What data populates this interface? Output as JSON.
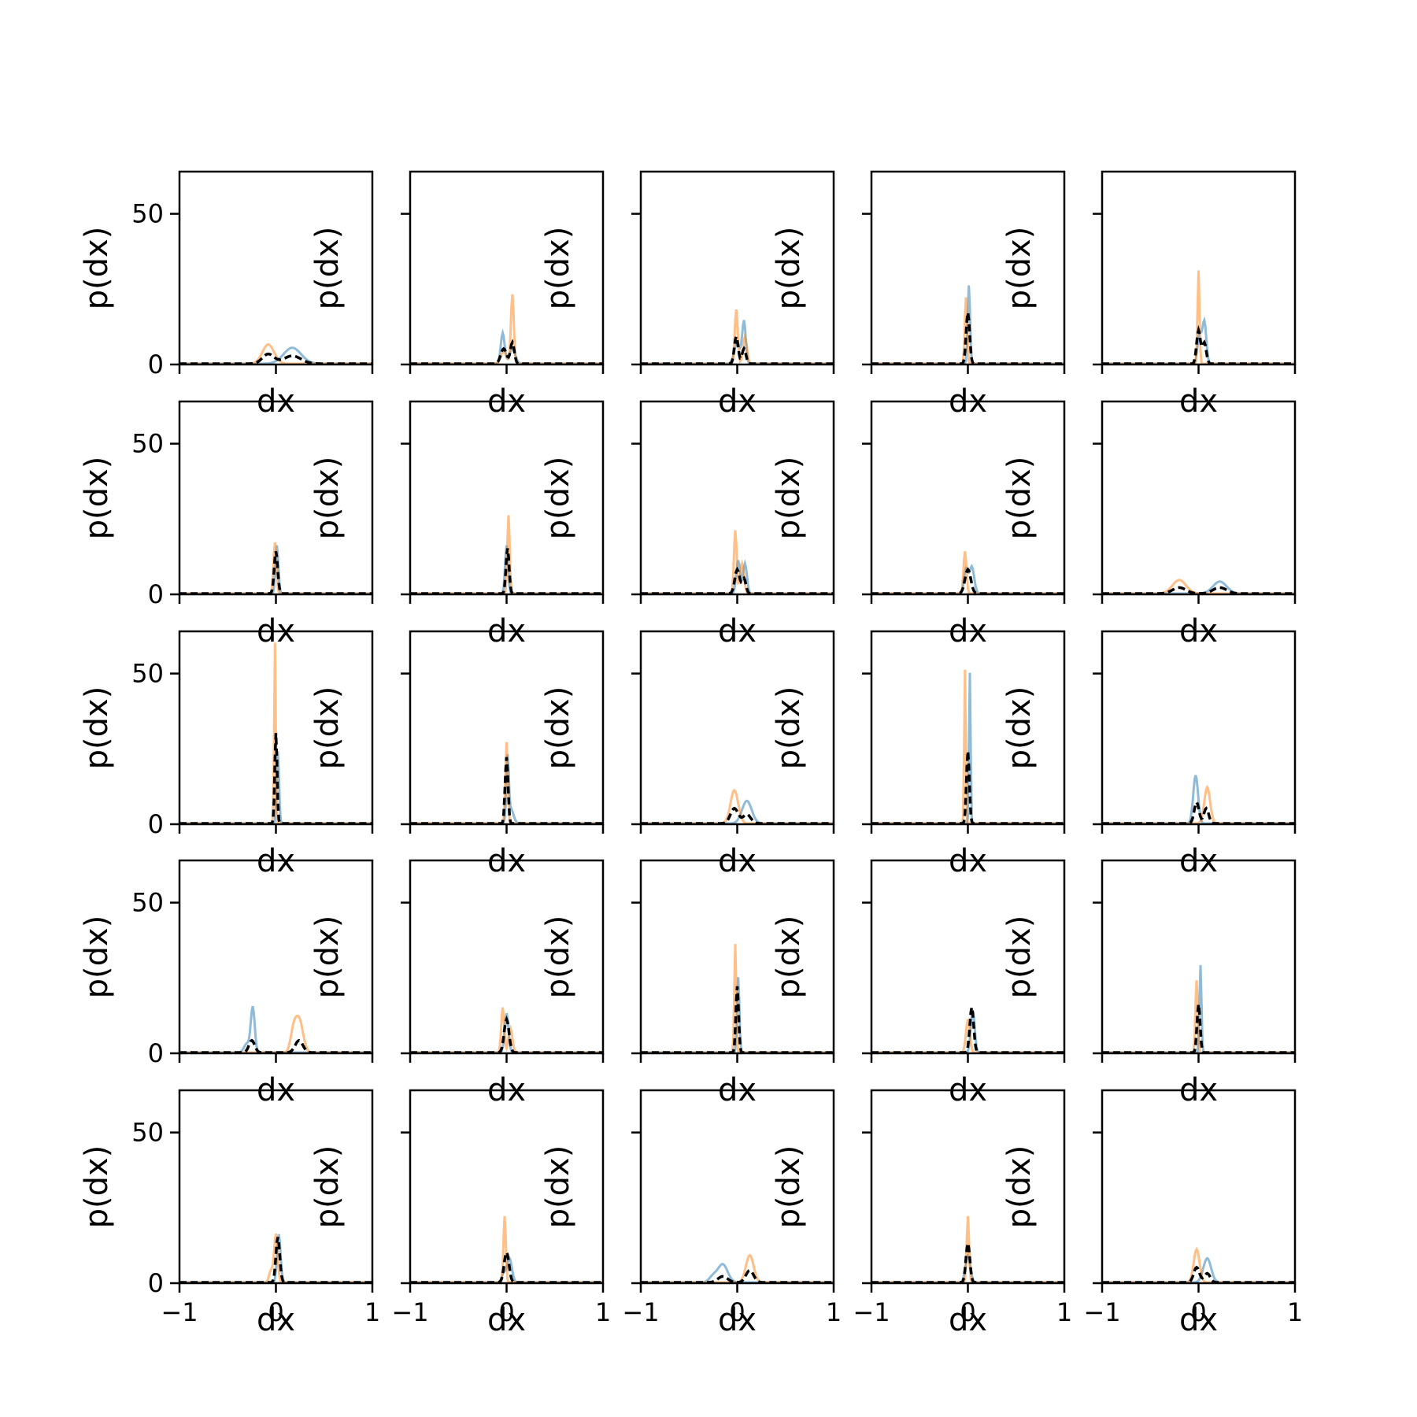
{
  "chart_data": {
    "type": "line",
    "layout": "grid",
    "rows": 5,
    "cols": 5,
    "xlabel": "dx",
    "ylabel": "p(dx)",
    "xlim": [
      -1,
      1
    ],
    "ylim": [
      0,
      64
    ],
    "xticks": [
      -1,
      0,
      1
    ],
    "xtick_labels": [
      "−1",
      "0",
      "1"
    ],
    "yticks": [
      0,
      50
    ],
    "ytick_labels": [
      "0",
      "50"
    ],
    "grid": false,
    "legend": "none",
    "series_styles": [
      {
        "key": "blue",
        "color": "#1f77b4",
        "alpha": 0.5,
        "style": "solid"
      },
      {
        "key": "orange",
        "color": "#ff7f0e",
        "alpha": 0.5,
        "style": "solid"
      },
      {
        "key": "black",
        "color": "#000000",
        "alpha": 1,
        "style": "dashed"
      }
    ],
    "panels": [
      {
        "blue": [
          [
            0.17,
            5.3,
            0.09
          ]
        ],
        "orange": [
          [
            -0.08,
            6.4,
            0.06
          ]
        ],
        "black": [
          [
            -0.08,
            3.2,
            0.06
          ],
          [
            0.17,
            2.6,
            0.09
          ]
        ]
      },
      {
        "blue": [
          [
            -0.04,
            10.2,
            0.02
          ],
          [
            0.06,
            5,
            0.03
          ]
        ],
        "orange": [
          [
            0.06,
            23,
            0.015
          ],
          [
            -0.03,
            4,
            0.03
          ]
        ],
        "black": [
          [
            -0.03,
            5,
            0.03
          ],
          [
            0.06,
            7,
            0.02
          ]
        ]
      },
      {
        "blue": [
          [
            0.07,
            14,
            0.018
          ],
          [
            0.0,
            7,
            0.03
          ]
        ],
        "orange": [
          [
            -0.01,
            18,
            0.015
          ],
          [
            0.08,
            9,
            0.02
          ]
        ],
        "black": [
          [
            -0.01,
            9,
            0.02
          ],
          [
            0.07,
            5,
            0.02
          ]
        ]
      },
      {
        "blue": [
          [
            0.01,
            26,
            0.012
          ]
        ],
        "orange": [
          [
            -0.02,
            22,
            0.012
          ]
        ],
        "black": [
          [
            0.0,
            17,
            0.018
          ]
        ]
      },
      {
        "blue": [
          [
            0.06,
            14,
            0.02
          ],
          [
            0.01,
            10,
            0.02
          ]
        ],
        "orange": [
          [
            0.0,
            31,
            0.01
          ]
        ],
        "black": [
          [
            0.0,
            11,
            0.02
          ],
          [
            0.06,
            7,
            0.02
          ]
        ]
      },
      {
        "blue": [
          [
            0.01,
            16,
            0.015
          ]
        ],
        "orange": [
          [
            -0.01,
            17,
            0.015
          ]
        ],
        "black": [
          [
            0.0,
            14,
            0.018
          ]
        ]
      },
      {
        "blue": [
          [
            0.0,
            16,
            0.015
          ]
        ],
        "orange": [
          [
            0.02,
            26,
            0.012
          ]
        ],
        "black": [
          [
            0.01,
            15,
            0.016
          ]
        ]
      },
      {
        "blue": [
          [
            0.08,
            10,
            0.02
          ],
          [
            0.01,
            11,
            0.02
          ]
        ],
        "orange": [
          [
            -0.02,
            21,
            0.014
          ],
          [
            0.05,
            10,
            0.02
          ]
        ],
        "black": [
          [
            0.0,
            8,
            0.025
          ],
          [
            0.07,
            5,
            0.02
          ]
        ]
      },
      {
        "blue": [
          [
            0.04,
            9,
            0.025
          ],
          [
            -0.02,
            8,
            0.02
          ]
        ],
        "orange": [
          [
            -0.03,
            14,
            0.015
          ]
        ],
        "black": [
          [
            0.0,
            8,
            0.03
          ]
        ]
      },
      {
        "blue": [
          [
            0.22,
            4,
            0.07
          ]
        ],
        "orange": [
          [
            -0.2,
            4.5,
            0.07
          ]
        ],
        "black": [
          [
            -0.2,
            2,
            0.07
          ],
          [
            0.22,
            2,
            0.07
          ]
        ]
      },
      {
        "blue": [
          [
            0.02,
            24,
            0.012
          ]
        ],
        "orange": [
          [
            -0.01,
            60,
            0.008
          ]
        ],
        "black": [
          [
            0.0,
            30,
            0.012
          ]
        ]
      },
      {
        "blue": [
          [
            0.04,
            5,
            0.03
          ],
          [
            0.01,
            20,
            0.012
          ]
        ],
        "orange": [
          [
            0.0,
            27,
            0.012
          ]
        ],
        "black": [
          [
            0.0,
            22,
            0.015
          ]
        ]
      },
      {
        "blue": [
          [
            0.1,
            7.5,
            0.05
          ]
        ],
        "orange": [
          [
            -0.03,
            11,
            0.04
          ]
        ],
        "black": [
          [
            -0.03,
            5,
            0.04
          ],
          [
            0.1,
            3,
            0.04
          ]
        ]
      },
      {
        "blue": [
          [
            0.02,
            50,
            0.008
          ]
        ],
        "orange": [
          [
            -0.03,
            51,
            0.008
          ]
        ],
        "black": [
          [
            0.0,
            24,
            0.015
          ]
        ]
      },
      {
        "blue": [
          [
            -0.03,
            16,
            0.025
          ]
        ],
        "orange": [
          [
            0.09,
            12,
            0.03
          ]
        ],
        "black": [
          [
            -0.02,
            7,
            0.025
          ],
          [
            0.08,
            5,
            0.025
          ]
        ]
      },
      {
        "blue": [
          [
            -0.24,
            15,
            0.02
          ],
          [
            -0.3,
            3,
            0.03
          ]
        ],
        "orange": [
          [
            0.24,
            11,
            0.04
          ],
          [
            0.18,
            6,
            0.03
          ]
        ],
        "black": [
          [
            -0.25,
            4,
            0.03
          ],
          [
            0.24,
            4,
            0.04
          ]
        ]
      },
      {
        "blue": [
          [
            0.0,
            13,
            0.02
          ]
        ],
        "orange": [
          [
            -0.04,
            15,
            0.015
          ],
          [
            0.04,
            8,
            0.02
          ]
        ],
        "black": [
          [
            0.0,
            11,
            0.025
          ]
        ]
      },
      {
        "blue": [
          [
            0.01,
            25,
            0.012
          ]
        ],
        "orange": [
          [
            -0.02,
            36,
            0.01
          ]
        ],
        "black": [
          [
            0.0,
            22,
            0.014
          ]
        ]
      },
      {
        "blue": [
          [
            0.05,
            14,
            0.02
          ]
        ],
        "orange": [
          [
            0.0,
            11,
            0.02
          ]
        ],
        "black": [
          [
            0.04,
            15,
            0.02
          ]
        ]
      },
      {
        "blue": [
          [
            0.02,
            29,
            0.01
          ]
        ],
        "orange": [
          [
            -0.02,
            24,
            0.012
          ]
        ],
        "black": [
          [
            0.0,
            16,
            0.016
          ]
        ]
      },
      {
        "blue": [
          [
            0.03,
            16,
            0.018
          ]
        ],
        "orange": [
          [
            0.0,
            16,
            0.018
          ],
          [
            -0.05,
            4,
            0.02
          ]
        ],
        "black": [
          [
            0.02,
            15,
            0.02
          ]
        ]
      },
      {
        "blue": [
          [
            0.03,
            8,
            0.025
          ],
          [
            -0.03,
            3,
            0.02
          ]
        ],
        "orange": [
          [
            -0.02,
            22,
            0.012
          ]
        ],
        "black": [
          [
            0.0,
            10,
            0.025
          ]
        ]
      },
      {
        "blue": [
          [
            -0.15,
            6,
            0.05
          ],
          [
            -0.25,
            2,
            0.04
          ]
        ],
        "orange": [
          [
            0.13,
            9,
            0.04
          ]
        ],
        "black": [
          [
            -0.15,
            2,
            0.05
          ],
          [
            0.13,
            4,
            0.04
          ]
        ]
      },
      {
        "blue": [
          [
            0.0,
            9,
            0.025
          ]
        ],
        "orange": [
          [
            0.0,
            22,
            0.012
          ]
        ],
        "black": [
          [
            0.0,
            13,
            0.02
          ]
        ]
      },
      {
        "blue": [
          [
            0.09,
            8,
            0.04
          ]
        ],
        "orange": [
          [
            -0.02,
            11,
            0.03
          ]
        ],
        "black": [
          [
            -0.02,
            5,
            0.03
          ],
          [
            0.09,
            3,
            0.03
          ]
        ]
      }
    ]
  }
}
